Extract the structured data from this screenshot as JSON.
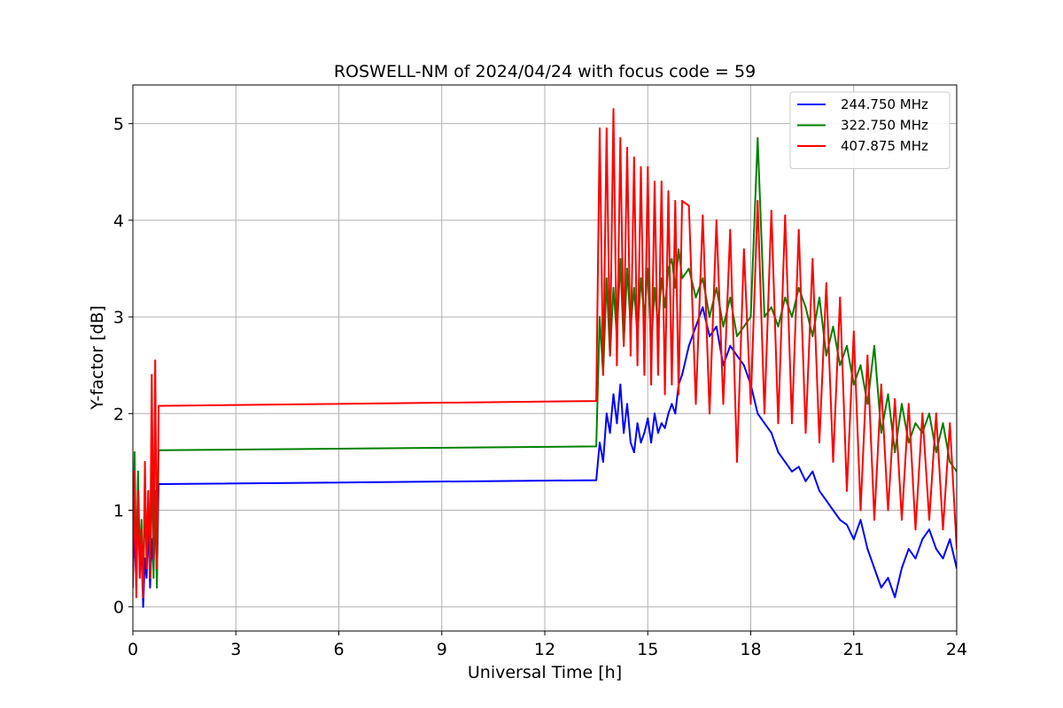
{
  "chart_data": {
    "type": "line",
    "title": "ROSWELL-NM of 2024/04/24 with focus code = 59",
    "xlabel": "Universal Time [h]",
    "ylabel": "Y-factor [dB]",
    "xlim": [
      0,
      24
    ],
    "ylim": [
      -0.25,
      5.4
    ],
    "xticks": [
      0,
      3,
      6,
      9,
      12,
      15,
      18,
      21,
      24
    ],
    "yticks": [
      0,
      1,
      2,
      3,
      4,
      5
    ],
    "grid": true,
    "legend_position": "top-right",
    "series": [
      {
        "name": "244.750 MHz",
        "color": "#0000ff",
        "x": [
          0,
          0.05,
          0.1,
          0.15,
          0.2,
          0.25,
          0.3,
          0.35,
          0.4,
          0.45,
          0.5,
          0.55,
          0.6,
          0.65,
          0.7,
          0.75,
          13.5,
          13.6,
          13.7,
          13.8,
          13.9,
          14.0,
          14.1,
          14.2,
          14.3,
          14.4,
          14.5,
          14.6,
          14.7,
          14.8,
          14.9,
          15.0,
          15.1,
          15.2,
          15.3,
          15.4,
          15.5,
          15.6,
          15.7,
          15.8,
          15.9,
          16.0,
          16.2,
          16.4,
          16.6,
          16.8,
          17.0,
          17.2,
          17.4,
          17.6,
          17.8,
          18.0,
          18.2,
          18.4,
          18.6,
          18.8,
          19.0,
          19.2,
          19.4,
          19.6,
          19.8,
          20.0,
          20.2,
          20.4,
          20.6,
          20.8,
          21.0,
          21.2,
          21.4,
          21.6,
          21.8,
          22.0,
          22.2,
          22.4,
          22.6,
          22.8,
          23.0,
          23.2,
          23.4,
          23.6,
          23.8,
          24.0
        ],
        "y": [
          0.3,
          0.8,
          0.2,
          1.2,
          0.4,
          0.6,
          0.0,
          0.5,
          0.3,
          0.9,
          0.2,
          0.7,
          0.4,
          1.0,
          0.3,
          1.27,
          1.31,
          1.7,
          1.5,
          2.0,
          1.8,
          2.2,
          1.9,
          2.3,
          1.8,
          2.1,
          1.7,
          1.6,
          1.9,
          1.7,
          1.8,
          1.95,
          1.7,
          2.0,
          1.8,
          1.9,
          1.85,
          2.0,
          2.1,
          2.0,
          2.3,
          2.4,
          2.7,
          2.9,
          3.1,
          2.8,
          2.9,
          2.5,
          2.7,
          2.6,
          2.5,
          2.3,
          2.0,
          1.9,
          1.8,
          1.6,
          1.5,
          1.4,
          1.45,
          1.3,
          1.4,
          1.2,
          1.1,
          1.0,
          0.9,
          0.85,
          0.7,
          0.9,
          0.6,
          0.4,
          0.2,
          0.3,
          0.1,
          0.4,
          0.6,
          0.5,
          0.7,
          0.8,
          0.6,
          0.5,
          0.7,
          0.4
        ]
      },
      {
        "name": "322.750 MHz",
        "color": "#008000",
        "x": [
          0,
          0.05,
          0.1,
          0.15,
          0.2,
          0.25,
          0.3,
          0.35,
          0.4,
          0.45,
          0.5,
          0.55,
          0.6,
          0.65,
          0.7,
          0.75,
          13.5,
          13.6,
          13.7,
          13.8,
          13.9,
          14.0,
          14.1,
          14.2,
          14.3,
          14.4,
          14.5,
          14.6,
          14.7,
          14.8,
          14.9,
          15.0,
          15.1,
          15.2,
          15.3,
          15.4,
          15.5,
          15.6,
          15.7,
          15.8,
          15.9,
          16.0,
          16.2,
          16.4,
          16.6,
          16.8,
          17.0,
          17.2,
          17.4,
          17.6,
          17.8,
          18.0,
          18.2,
          18.4,
          18.6,
          18.8,
          19.0,
          19.2,
          19.4,
          19.6,
          19.8,
          20.0,
          20.2,
          20.4,
          20.6,
          20.8,
          21.0,
          21.2,
          21.4,
          21.6,
          21.8,
          22.0,
          22.2,
          22.4,
          22.6,
          22.8,
          23.0,
          23.2,
          23.4,
          23.6,
          23.8,
          24.0
        ],
        "y": [
          0.4,
          1.6,
          0.3,
          1.4,
          0.5,
          0.9,
          0.2,
          1.0,
          0.6,
          1.2,
          0.4,
          1.5,
          0.3,
          1.2,
          0.2,
          1.62,
          1.66,
          3.0,
          2.4,
          3.4,
          2.6,
          3.3,
          2.8,
          3.6,
          2.7,
          3.5,
          2.9,
          3.3,
          2.8,
          3.4,
          3.0,
          3.5,
          2.7,
          3.3,
          2.9,
          3.4,
          3.1,
          3.5,
          3.6,
          3.3,
          3.7,
          3.4,
          3.5,
          3.2,
          3.4,
          3.0,
          3.3,
          2.9,
          3.2,
          2.8,
          2.9,
          3.0,
          4.85,
          3.0,
          3.1,
          2.9,
          3.2,
          3.0,
          3.3,
          3.1,
          2.8,
          3.2,
          2.6,
          2.9,
          2.5,
          2.7,
          2.3,
          2.5,
          2.1,
          2.7,
          1.8,
          2.2,
          1.6,
          2.1,
          1.7,
          1.9,
          1.8,
          2.0,
          1.6,
          1.9,
          1.5,
          1.4
        ]
      },
      {
        "name": "407.875 MHz",
        "color": "#ff0000",
        "x": [
          0,
          0.05,
          0.1,
          0.15,
          0.2,
          0.25,
          0.3,
          0.35,
          0.4,
          0.45,
          0.5,
          0.55,
          0.6,
          0.65,
          0.7,
          0.75,
          13.5,
          13.6,
          13.7,
          13.8,
          13.9,
          14.0,
          14.1,
          14.2,
          14.3,
          14.4,
          14.5,
          14.6,
          14.7,
          14.8,
          14.9,
          15.0,
          15.1,
          15.2,
          15.3,
          15.4,
          15.5,
          15.6,
          15.7,
          15.8,
          15.9,
          16.0,
          16.2,
          16.4,
          16.6,
          16.8,
          17.0,
          17.2,
          17.4,
          17.6,
          17.8,
          18.0,
          18.2,
          18.4,
          18.6,
          18.8,
          19.0,
          19.2,
          19.4,
          19.6,
          19.8,
          20.0,
          20.2,
          20.4,
          20.6,
          20.8,
          21.0,
          21.2,
          21.4,
          21.6,
          21.8,
          22.0,
          22.2,
          22.4,
          22.6,
          22.8,
          23.0,
          23.2,
          23.4,
          23.6,
          23.8,
          24.0
        ],
        "y": [
          0.2,
          1.4,
          0.1,
          1.2,
          0.3,
          0.8,
          0.1,
          1.5,
          0.4,
          1.2,
          0.3,
          2.4,
          0.5,
          2.55,
          0.4,
          2.08,
          2.13,
          4.95,
          2.4,
          4.95,
          2.6,
          5.15,
          2.5,
          4.85,
          2.7,
          4.75,
          2.6,
          4.65,
          2.5,
          4.55,
          2.4,
          4.55,
          2.3,
          4.4,
          2.4,
          4.4,
          2.2,
          4.3,
          2.3,
          4.2,
          2.2,
          4.2,
          4.15,
          2.1,
          4.05,
          2.0,
          4.0,
          2.1,
          3.9,
          1.5,
          3.7,
          2.1,
          4.2,
          2.0,
          4.1,
          1.9,
          4.05,
          1.9,
          3.9,
          1.8,
          3.6,
          1.7,
          3.35,
          1.5,
          3.2,
          1.2,
          2.85,
          1.0,
          2.6,
          0.9,
          2.3,
          1.0,
          2.15,
          0.9,
          2.1,
          0.8,
          2.0,
          0.9,
          2.0,
          0.8,
          1.9,
          0.6
        ]
      }
    ]
  }
}
